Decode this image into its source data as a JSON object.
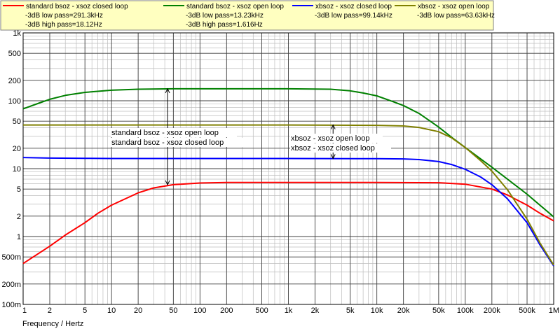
{
  "colors": {
    "legend_bg": "#ffffc0",
    "grid_major": "#404040",
    "grid_minor": "#bdbdbd"
  },
  "chart_data": {
    "type": "line",
    "xscale": "log",
    "yscale": "log",
    "xlim": [
      1,
      1000000
    ],
    "ylim": [
      0.1,
      1000
    ],
    "xlabel": "Frequency / Hertz",
    "ylabel": "",
    "grid": true,
    "legend_position": "top",
    "x_ticks": [
      {
        "v": 1,
        "label": "1"
      },
      {
        "v": 2,
        "label": "2"
      },
      {
        "v": 5,
        "label": "5"
      },
      {
        "v": 10,
        "label": "10"
      },
      {
        "v": 20,
        "label": "20"
      },
      {
        "v": 50,
        "label": "50"
      },
      {
        "v": 100,
        "label": "100"
      },
      {
        "v": 200,
        "label": "200"
      },
      {
        "v": 500,
        "label": "500"
      },
      {
        "v": 1000,
        "label": "1k"
      },
      {
        "v": 2000,
        "label": "2k"
      },
      {
        "v": 5000,
        "label": "5k"
      },
      {
        "v": 10000,
        "label": "10k"
      },
      {
        "v": 20000,
        "label": "20k"
      },
      {
        "v": 50000,
        "label": "50k"
      },
      {
        "v": 100000,
        "label": "100k"
      },
      {
        "v": 200000,
        "label": "200k"
      },
      {
        "v": 500000,
        "label": "500k"
      },
      {
        "v": 1000000,
        "label": "1M"
      }
    ],
    "y_ticks": [
      {
        "v": 1000,
        "label": "1k"
      },
      {
        "v": 500,
        "label": "500"
      },
      {
        "v": 200,
        "label": "200"
      },
      {
        "v": 100,
        "label": "100"
      },
      {
        "v": 50,
        "label": "50"
      },
      {
        "v": 20,
        "label": "20"
      },
      {
        "v": 10,
        "label": "10"
      },
      {
        "v": 5,
        "label": "5"
      },
      {
        "v": 2,
        "label": "2"
      },
      {
        "v": 1,
        "label": "1"
      },
      {
        "v": 0.5,
        "label": "500m"
      },
      {
        "v": 0.2,
        "label": "200m"
      },
      {
        "v": 0.1,
        "label": "100m"
      }
    ],
    "series": [
      {
        "name": "standard bsoz - xsoz closed loop",
        "color": "#ff0000",
        "notes": [
          "-3dB low pass=291.3kHz",
          "-3dB high pass=18.12Hz"
        ],
        "points": [
          [
            1,
            0.4
          ],
          [
            2,
            0.72
          ],
          [
            3,
            1.05
          ],
          [
            5,
            1.6
          ],
          [
            7,
            2.2
          ],
          [
            10,
            2.9
          ],
          [
            15,
            3.7
          ],
          [
            20,
            4.4
          ],
          [
            30,
            5.2
          ],
          [
            50,
            5.8
          ],
          [
            100,
            6.15
          ],
          [
            200,
            6.25
          ],
          [
            1000,
            6.25
          ],
          [
            10000,
            6.25
          ],
          [
            50000,
            6.2
          ],
          [
            100000,
            5.9
          ],
          [
            200000,
            5.0
          ],
          [
            300000,
            4.1
          ],
          [
            500000,
            2.9
          ],
          [
            700000,
            2.2
          ],
          [
            1000000,
            1.7
          ]
        ]
      },
      {
        "name": "standard bsoz - xsoz open loop",
        "color": "#008000",
        "notes": [
          "-3dB low pass=13.23kHz",
          "-3dB high pass=1.616Hz"
        ],
        "points": [
          [
            1,
            76
          ],
          [
            1.5,
            92
          ],
          [
            2,
            105
          ],
          [
            3,
            120
          ],
          [
            5,
            133
          ],
          [
            10,
            143
          ],
          [
            20,
            148
          ],
          [
            50,
            150
          ],
          [
            100,
            150
          ],
          [
            1000,
            150
          ],
          [
            3000,
            148
          ],
          [
            5000,
            140
          ],
          [
            7000,
            130
          ],
          [
            10000,
            118
          ],
          [
            15000,
            98
          ],
          [
            20000,
            85
          ],
          [
            30000,
            65
          ],
          [
            50000,
            41
          ],
          [
            70000,
            29
          ],
          [
            100000,
            20.5
          ],
          [
            200000,
            10.5
          ],
          [
            500000,
            4.2
          ],
          [
            1000000,
            1.95
          ]
        ]
      },
      {
        "name": "xbsoz - xsoz closed loop",
        "color": "#0000ff",
        "notes": [
          "-3dB low pass=99.14kHz"
        ],
        "points": [
          [
            1,
            14.6
          ],
          [
            2,
            14.3
          ],
          [
            5,
            14.2
          ],
          [
            10,
            14.1
          ],
          [
            100,
            14.1
          ],
          [
            1000,
            14.1
          ],
          [
            10000,
            14.0
          ],
          [
            20000,
            13.9
          ],
          [
            30000,
            13.6
          ],
          [
            50000,
            12.7
          ],
          [
            70000,
            11.5
          ],
          [
            100000,
            9.8
          ],
          [
            150000,
            7.5
          ],
          [
            200000,
            5.8
          ],
          [
            300000,
            3.6
          ],
          [
            500000,
            1.6
          ],
          [
            700000,
            0.75
          ],
          [
            1000000,
            0.37
          ]
        ]
      },
      {
        "name": "xbsoz - xsoz open loop",
        "color": "#808000",
        "notes": [
          "-3dB low pass=63.63kHz"
        ],
        "points": [
          [
            1,
            44
          ],
          [
            10,
            44
          ],
          [
            100,
            44
          ],
          [
            1000,
            44
          ],
          [
            10000,
            43.5
          ],
          [
            20000,
            42.5
          ],
          [
            30000,
            40.5
          ],
          [
            50000,
            35
          ],
          [
            70000,
            28.5
          ],
          [
            100000,
            20.5
          ],
          [
            150000,
            13
          ],
          [
            200000,
            9.2
          ],
          [
            300000,
            4.9
          ],
          [
            500000,
            1.8
          ],
          [
            700000,
            0.8
          ],
          [
            1000000,
            0.38
          ]
        ]
      }
    ],
    "annotations": [
      {
        "lines": [
          "standard bsoz - xsoz open loop",
          "standard bsoz - xsoz closed loop"
        ],
        "arrow_x": 43,
        "arrow_from": 150,
        "arrow_to": 5.8
      },
      {
        "lines": [
          "xbsoz - xsoz open loop",
          "xbsoz - xsoz closed loop"
        ],
        "arrow_x": 3200,
        "arrow_from": 44,
        "arrow_to": 14.1
      }
    ]
  }
}
